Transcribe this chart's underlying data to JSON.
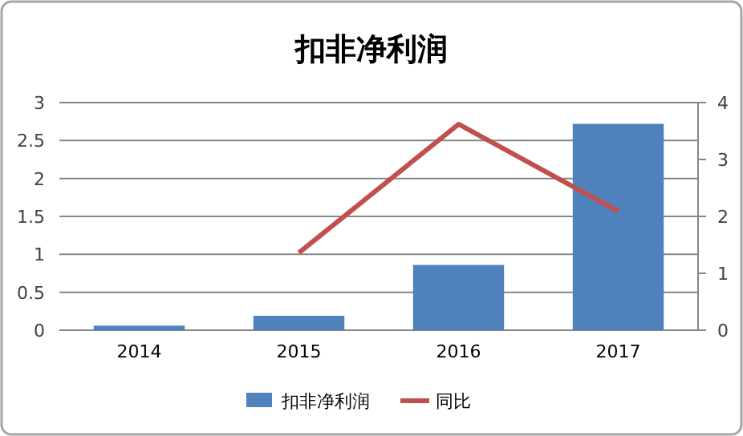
{
  "chart_data": {
    "type": "bar",
    "title": "扣非净利润",
    "categories": [
      "2014",
      "2015",
      "2016",
      "2017"
    ],
    "series": [
      {
        "name": "扣非净利润",
        "color": "#4f81bd",
        "values": [
          0.06,
          0.19,
          0.86,
          2.72
        ]
      },
      {
        "name": "同比",
        "type": "line",
        "axis": "y2",
        "color": "#c0504d",
        "values": [
          null,
          1.36,
          3.62,
          2.09
        ]
      }
    ],
    "ylim": [
      0,
      3
    ],
    "yticks": [
      0,
      0.5,
      1,
      1.5,
      2,
      2.5,
      3
    ],
    "y2lim": [
      0,
      4
    ],
    "y2ticks": [
      0,
      1,
      2,
      3,
      4
    ],
    "grid": "y",
    "legend": "bottom"
  }
}
